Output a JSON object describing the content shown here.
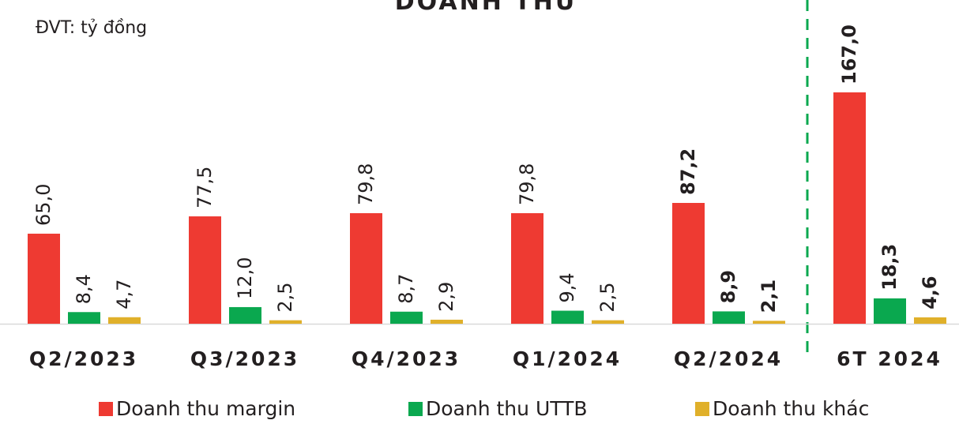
{
  "chart_data": {
    "type": "bar",
    "title": "DOANH THU",
    "subtitle": "ĐVT: tỷ đồng",
    "categories": [
      "Q2/2023",
      "Q3/2023",
      "Q4/2023",
      "Q1/2024",
      "Q2/2024",
      "6T 2024"
    ],
    "series": [
      {
        "name": "Doanh thu margin",
        "color": "#ee3a32",
        "values": [
          65.0,
          77.5,
          79.8,
          79.8,
          87.2,
          167.0
        ],
        "value_labels": [
          "65,0",
          "77,5",
          "79,8",
          "79,8",
          "87,2",
          "167,0"
        ]
      },
      {
        "name": "Doanh thu UTTB",
        "color": "#0aa84f",
        "values": [
          8.4,
          12.0,
          8.7,
          9.4,
          8.9,
          18.3
        ],
        "value_labels": [
          "8,4",
          "12,0",
          "8,7",
          "9,4",
          "8,9",
          "18,3"
        ]
      },
      {
        "name": "Doanh thu khác",
        "color": "#e0b02a",
        "values": [
          4.7,
          2.5,
          2.9,
          2.5,
          2.1,
          4.6
        ],
        "value_labels": [
          "4,7",
          "2,5",
          "2,9",
          "2,5",
          "2,1",
          "4,6"
        ]
      }
    ]
  }
}
